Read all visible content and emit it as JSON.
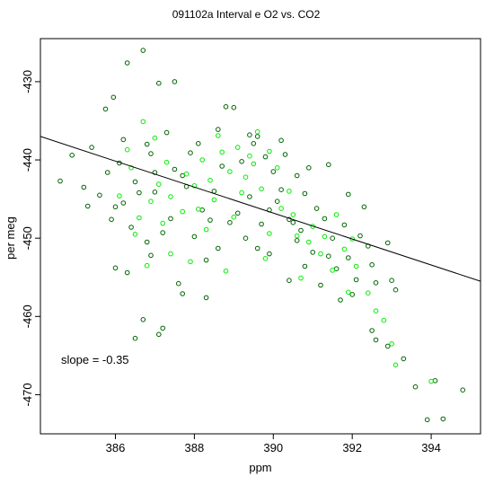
{
  "chart_data": {
    "type": "scatter",
    "title": "091102a   Interval e O2 vs. CO2",
    "xlabel": "ppm",
    "ylabel": "per meg",
    "xlim": [
      384.1,
      395.25
    ],
    "ylim": [
      -475.0,
      -424.5
    ],
    "xticks": [
      386,
      388,
      390,
      392,
      394
    ],
    "yticks": [
      -470,
      -460,
      -450,
      -440,
      -430
    ],
    "grid": false,
    "legend": "none",
    "annotation": "slope =  -0.35",
    "fit_line": {
      "slope": -0.35,
      "x": [
        384.1,
        395.25
      ],
      "y": [
        -437.0,
        -455.5
      ]
    },
    "colors": {
      "dark_points": "#006400",
      "light_points": "#00ee00",
      "fit_line": "#000000"
    },
    "series": [
      {
        "color": "#006400",
        "points": [
          [
            384.6,
            -442.7
          ],
          [
            384.9,
            -439.4
          ],
          [
            385.3,
            -445.9
          ],
          [
            385.6,
            -444.5
          ],
          [
            385.9,
            -447.6
          ],
          [
            386.0,
            -446.0
          ],
          [
            385.75,
            -433.5
          ],
          [
            385.95,
            -432.0
          ],
          [
            386.2,
            -437.4
          ],
          [
            386.5,
            -442.8
          ],
          [
            386.8,
            -438.0
          ],
          [
            387.0,
            -444.1
          ],
          [
            387.3,
            -436.5
          ],
          [
            387.5,
            -441.2
          ],
          [
            387.8,
            -443.4
          ],
          [
            388.1,
            -437.9
          ],
          [
            388.4,
            -447.7
          ],
          [
            388.7,
            -440.8
          ],
          [
            389.0,
            -433.3
          ],
          [
            389.2,
            -440.2
          ],
          [
            389.5,
            -437.9
          ],
          [
            389.9,
            -446.4
          ],
          [
            390.2,
            -443.8
          ],
          [
            390.5,
            -448.0
          ],
          [
            390.8,
            -444.3
          ],
          [
            391.0,
            -451.8
          ],
          [
            391.3,
            -447.5
          ],
          [
            391.6,
            -453.9
          ],
          [
            391.9,
            -452.5
          ],
          [
            392.2,
            -449.7
          ],
          [
            392.5,
            -453.4
          ],
          [
            392.9,
            -450.6
          ],
          [
            393.0,
            -455.4
          ],
          [
            386.7,
            -426.0
          ],
          [
            386.3,
            -427.6
          ],
          [
            387.1,
            -430.2
          ],
          [
            387.5,
            -430.0
          ],
          [
            388.8,
            -433.2
          ],
          [
            389.6,
            -437.0
          ],
          [
            390.2,
            -437.5
          ],
          [
            390.6,
            -442.0
          ],
          [
            391.4,
            -440.6
          ],
          [
            391.9,
            -444.4
          ],
          [
            392.3,
            -446.0
          ],
          [
            392.0,
            -457.2
          ],
          [
            392.5,
            -461.8
          ],
          [
            392.6,
            -463.0
          ],
          [
            392.9,
            -463.8
          ],
          [
            393.3,
            -465.4
          ],
          [
            393.6,
            -469.0
          ],
          [
            393.9,
            -473.2
          ],
          [
            394.1,
            -468.2
          ],
          [
            394.3,
            -473.1
          ],
          [
            394.8,
            -469.4
          ],
          [
            386.5,
            -462.8
          ],
          [
            386.7,
            -460.4
          ],
          [
            387.1,
            -462.3
          ],
          [
            387.2,
            -461.5
          ],
          [
            388.3,
            -457.6
          ],
          [
            387.7,
            -457.1
          ],
          [
            386.0,
            -453.8
          ],
          [
            386.3,
            -454.4
          ],
          [
            386.9,
            -452.2
          ],
          [
            387.6,
            -455.8
          ],
          [
            388.6,
            -451.3
          ],
          [
            389.3,
            -450.0
          ],
          [
            389.9,
            -452.0
          ],
          [
            390.4,
            -455.4
          ],
          [
            390.8,
            -453.6
          ],
          [
            391.2,
            -456.0
          ],
          [
            391.7,
            -457.9
          ],
          [
            392.1,
            -455.3
          ],
          [
            385.4,
            -438.4
          ],
          [
            385.8,
            -441.6
          ],
          [
            386.6,
            -444.2
          ],
          [
            387.4,
            -447.5
          ],
          [
            388.0,
            -449.8
          ],
          [
            388.9,
            -448.0
          ],
          [
            389.4,
            -444.7
          ],
          [
            390.0,
            -441.5
          ],
          [
            390.3,
            -439.3
          ],
          [
            390.9,
            -441.0
          ],
          [
            386.1,
            -440.4
          ],
          [
            386.9,
            -439.2
          ],
          [
            387.7,
            -442.0
          ],
          [
            388.5,
            -444.0
          ],
          [
            389.1,
            -446.8
          ],
          [
            389.7,
            -448.2
          ],
          [
            390.6,
            -450.3
          ],
          [
            391.5,
            -450.0
          ],
          [
            386.4,
            -448.6
          ],
          [
            387.2,
            -449.3
          ],
          [
            388.2,
            -446.4
          ],
          [
            389.8,
            -439.6
          ],
          [
            390.1,
            -445.3
          ],
          [
            391.1,
            -446.2
          ],
          [
            385.2,
            -443.5
          ],
          [
            386.2,
            -445.5
          ],
          [
            387.0,
            -441.6
          ],
          [
            387.9,
            -439.1
          ],
          [
            388.6,
            -436.1
          ],
          [
            389.4,
            -436.8
          ],
          [
            390.4,
            -447.6
          ],
          [
            391.4,
            -452.3
          ],
          [
            392.6,
            -455.7
          ],
          [
            393.1,
            -456.6
          ],
          [
            386.8,
            -450.5
          ],
          [
            388.3,
            -452.8
          ],
          [
            389.6,
            -451.3
          ],
          [
            390.7,
            -449.0
          ],
          [
            391.8,
            -448.3
          ],
          [
            392.4,
            -451.0
          ]
        ]
      },
      {
        "color": "#00ee00",
        "points": [
          [
            386.1,
            -444.6
          ],
          [
            386.4,
            -441.0
          ],
          [
            386.6,
            -447.4
          ],
          [
            386.9,
            -445.3
          ],
          [
            387.1,
            -443.1
          ],
          [
            387.4,
            -444.7
          ],
          [
            387.7,
            -446.6
          ],
          [
            388.0,
            -443.3
          ],
          [
            388.2,
            -440.0
          ],
          [
            388.4,
            -442.6
          ],
          [
            388.7,
            -439.0
          ],
          [
            388.9,
            -441.5
          ],
          [
            389.1,
            -438.4
          ],
          [
            389.3,
            -442.2
          ],
          [
            389.5,
            -440.5
          ],
          [
            389.7,
            -443.7
          ],
          [
            389.9,
            -438.9
          ],
          [
            390.2,
            -446.2
          ],
          [
            390.5,
            -447.0
          ],
          [
            390.9,
            -450.5
          ],
          [
            391.2,
            -452.0
          ],
          [
            391.5,
            -454.1
          ],
          [
            391.8,
            -451.4
          ],
          [
            392.1,
            -453.6
          ],
          [
            392.4,
            -457.0
          ],
          [
            392.6,
            -459.3
          ],
          [
            393.0,
            -463.5
          ],
          [
            393.1,
            -466.2
          ],
          [
            394.0,
            -468.3
          ],
          [
            386.8,
            -453.5
          ],
          [
            387.4,
            -452.0
          ],
          [
            387.9,
            -453.0
          ],
          [
            388.8,
            -454.2
          ],
          [
            389.9,
            -449.4
          ],
          [
            390.6,
            -449.7
          ],
          [
            391.0,
            -448.5
          ],
          [
            386.3,
            -438.7
          ],
          [
            387.0,
            -437.2
          ],
          [
            387.3,
            -440.3
          ],
          [
            388.1,
            -446.3
          ],
          [
            388.5,
            -445.1
          ],
          [
            389.0,
            -447.3
          ],
          [
            389.2,
            -444.2
          ],
          [
            389.6,
            -436.4
          ],
          [
            390.1,
            -441.0
          ],
          [
            390.4,
            -444.0
          ],
          [
            387.8,
            -441.8
          ],
          [
            388.6,
            -436.9
          ],
          [
            389.4,
            -439.5
          ],
          [
            386.5,
            -449.5
          ],
          [
            387.2,
            -448.1
          ],
          [
            391.3,
            -449.8
          ],
          [
            391.6,
            -447.0
          ],
          [
            392.0,
            -450.1
          ],
          [
            392.8,
            -460.5
          ],
          [
            386.7,
            -435.1
          ],
          [
            388.3,
            -448.9
          ],
          [
            389.8,
            -452.6
          ],
          [
            390.7,
            -455.1
          ],
          [
            391.9,
            -456.9
          ]
        ]
      }
    ]
  }
}
